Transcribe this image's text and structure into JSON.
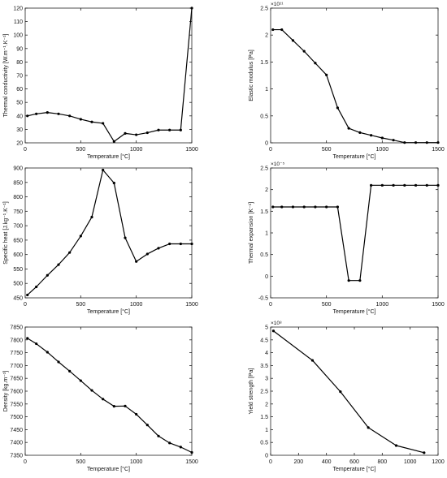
{
  "chart_data": [
    {
      "type": "line",
      "xlabel": "Temperature [°C]",
      "ylabel": "Thermal conductivity [W.m⁻¹.K⁻¹]",
      "xlim": [
        0,
        1500
      ],
      "ylim": [
        20,
        120
      ],
      "xticks": [
        0,
        500,
        1000,
        1500
      ],
      "yticks": [
        20,
        30,
        40,
        50,
        60,
        70,
        80,
        90,
        100,
        110,
        120
      ],
      "ytick_labels": [
        "20",
        "30",
        "40",
        "50",
        "60",
        "70",
        "80",
        "90",
        "100",
        "110",
        "120"
      ],
      "x": [
        20,
        100,
        200,
        300,
        400,
        500,
        600,
        700,
        800,
        900,
        1000,
        1100,
        1200,
        1300,
        1400,
        1500
      ],
      "y": [
        40,
        41.5,
        42.5,
        41.5,
        40,
        37.5,
        35.5,
        34.5,
        21,
        27,
        26,
        27.5,
        29.5,
        29.5,
        29.5,
        120
      ]
    },
    {
      "type": "line",
      "xlabel": "Temperature [°C]",
      "ylabel": "Elastic modulus [Pa]",
      "multiplier": "×10¹¹",
      "xlim": [
        0,
        1500
      ],
      "ylim": [
        0,
        2.5
      ],
      "xticks": [
        0,
        500,
        1000,
        1500
      ],
      "yticks": [
        0,
        0.5,
        1,
        1.5,
        2,
        2.5
      ],
      "ytick_labels": [
        "0",
        "0.5",
        "1",
        "1.5",
        "2",
        "2.5"
      ],
      "x": [
        20,
        100,
        200,
        300,
        400,
        500,
        600,
        700,
        800,
        900,
        1000,
        1100,
        1200,
        1300,
        1400,
        1500
      ],
      "y": [
        2.1,
        2.1,
        1.9,
        1.7,
        1.48,
        1.26,
        0.65,
        0.27,
        0.19,
        0.14,
        0.09,
        0.05,
        0.005,
        0.005,
        0.005,
        0.005
      ]
    },
    {
      "type": "line",
      "xlabel": "Temperature [°C]",
      "ylabel": "Specific heat [J.kg⁻¹.K⁻¹]",
      "xlim": [
        0,
        1500
      ],
      "ylim": [
        450,
        900
      ],
      "xticks": [
        0,
        500,
        1000,
        1500
      ],
      "yticks": [
        450,
        500,
        550,
        600,
        650,
        700,
        750,
        800,
        850,
        900
      ],
      "ytick_labels": [
        "450",
        "500",
        "550",
        "600",
        "650",
        "700",
        "750",
        "800",
        "850",
        "900"
      ],
      "x": [
        20,
        100,
        200,
        300,
        400,
        500,
        600,
        700,
        800,
        900,
        1000,
        1100,
        1200,
        1300,
        1400,
        1500
      ],
      "y": [
        460,
        488,
        528,
        565,
        607,
        664,
        730,
        893,
        848,
        658,
        576,
        602,
        622,
        637,
        637,
        637
      ]
    },
    {
      "type": "line",
      "xlabel": "Temperature [°C]",
      "ylabel": "Thermal expansion [K⁻¹]",
      "multiplier": "×10⁻⁵",
      "xlim": [
        0,
        1500
      ],
      "ylim": [
        -0.5,
        2.5
      ],
      "xticks": [
        0,
        500,
        1000,
        1500
      ],
      "yticks": [
        -0.5,
        0,
        0.5,
        1,
        1.5,
        2,
        2.5
      ],
      "ytick_labels": [
        "-0.5",
        "0",
        "0.5",
        "1",
        "1.5",
        "2",
        "2.5"
      ],
      "x": [
        20,
        100,
        200,
        300,
        400,
        500,
        600,
        700,
        800,
        900,
        1000,
        1100,
        1200,
        1300,
        1400,
        1500
      ],
      "y": [
        1.6,
        1.6,
        1.6,
        1.6,
        1.6,
        1.6,
        1.6,
        -0.1,
        -0.1,
        2.1,
        2.1,
        2.1,
        2.1,
        2.1,
        2.1,
        2.1
      ]
    },
    {
      "type": "line",
      "xlabel": "Temperature [°C]",
      "ylabel": "Density [kg.m⁻³]",
      "xlim": [
        0,
        1500
      ],
      "ylim": [
        7350,
        7850
      ],
      "xticks": [
        0,
        500,
        1000,
        1500
      ],
      "yticks": [
        7350,
        7400,
        7450,
        7500,
        7550,
        7600,
        7650,
        7700,
        7750,
        7800,
        7850
      ],
      "ytick_labels": [
        "7350",
        "7400",
        "7450",
        "7500",
        "7550",
        "7600",
        "7650",
        "7700",
        "7750",
        "7800",
        "7850"
      ],
      "x": [
        20,
        100,
        200,
        300,
        400,
        500,
        600,
        700,
        800,
        900,
        1000,
        1100,
        1200,
        1300,
        1400,
        1500
      ],
      "y": [
        7806,
        7785,
        7752,
        7714,
        7678,
        7641,
        7603,
        7569,
        7541,
        7542,
        7510,
        7468,
        7425,
        7398,
        7382,
        7361
      ]
    },
    {
      "type": "line",
      "xlabel": "Temperature [°C]",
      "ylabel": "Yield strength [Pa]",
      "multiplier": "×10⁸",
      "xlim": [
        0,
        1200
      ],
      "ylim": [
        0,
        5
      ],
      "xticks": [
        0,
        200,
        400,
        600,
        800,
        1000,
        1200
      ],
      "yticks": [
        0,
        0.5,
        1,
        1.5,
        2,
        2.5,
        3,
        3.5,
        4,
        4.5,
        5
      ],
      "ytick_labels": [
        "0",
        "0.5",
        "1",
        "1.5",
        "2",
        "2.5",
        "3",
        "3.5",
        "4",
        "4.5",
        "5"
      ],
      "x": [
        20,
        300,
        500,
        700,
        900,
        1100
      ],
      "y": [
        4.85,
        3.7,
        2.48,
        1.08,
        0.38,
        0.1
      ]
    }
  ]
}
